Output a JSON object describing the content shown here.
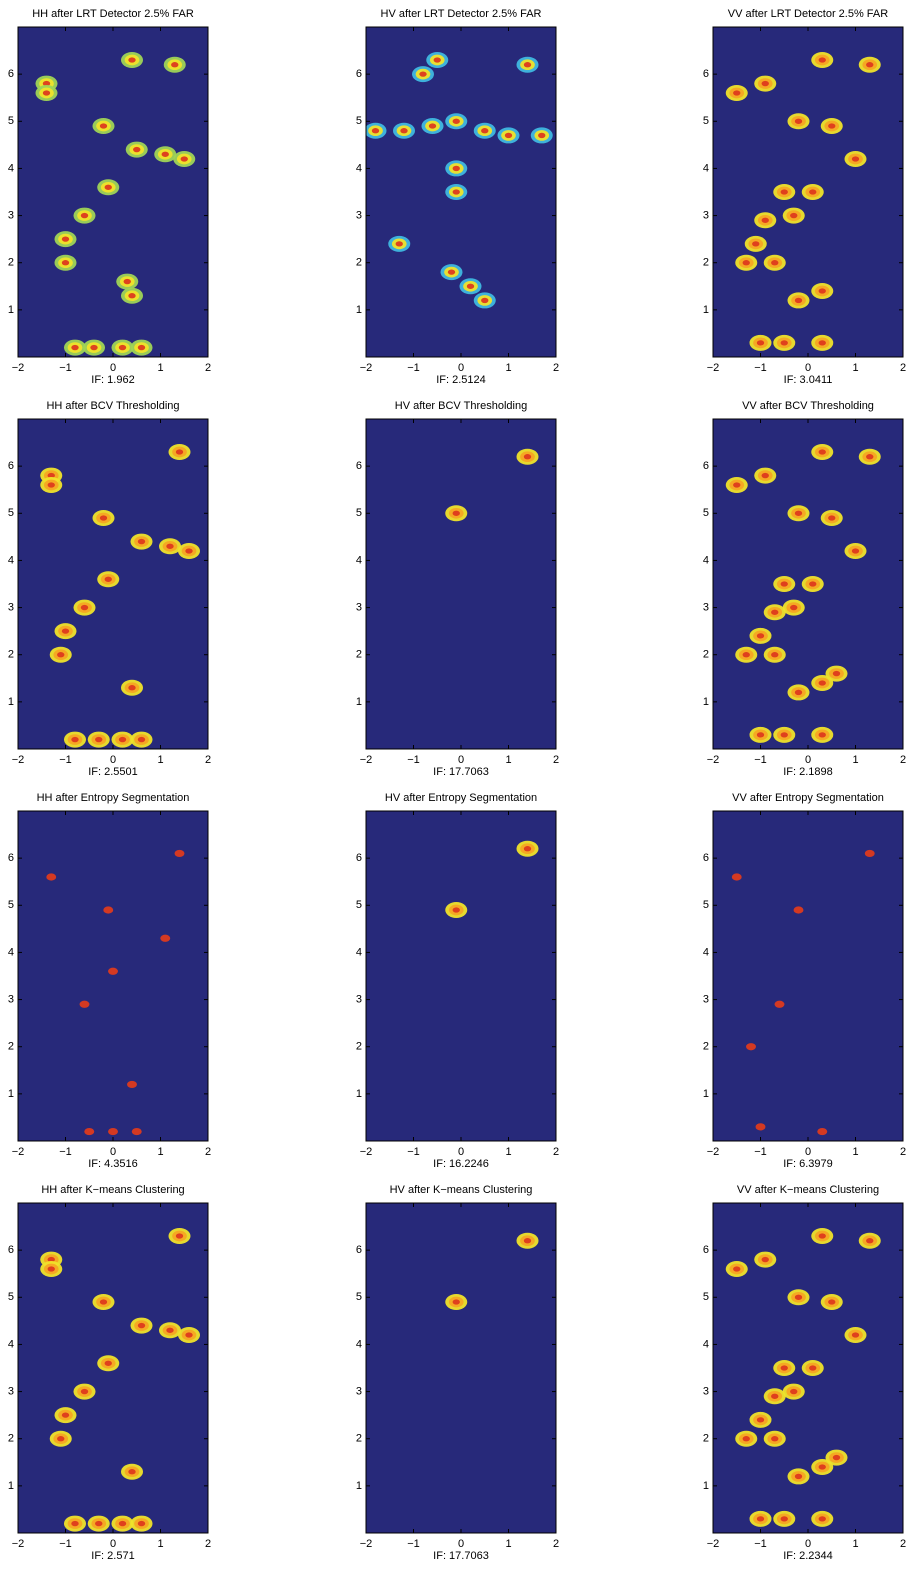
{
  "chart_data": [
    {
      "type": "image",
      "title": "HH after LRT Detector 2.5% FAR",
      "xlabel": "IF: 1.962",
      "xlim": [
        -2,
        2
      ],
      "ylim": [
        0,
        7
      ],
      "xticks": [
        {
          "value": -2,
          "label": "−2"
        },
        {
          "value": -1,
          "label": "−1"
        },
        0,
        1,
        2
      ],
      "yticks": [
        1,
        2,
        3,
        4,
        5,
        6
      ],
      "background": "#27297a",
      "colors": [
        "#9fd456",
        "#f0e32a",
        "#dd3a1e"
      ],
      "x": [
        -1.4,
        -1.4,
        1.3,
        1.1,
        0.5,
        -0.2,
        -0.1,
        -0.6,
        -1.0,
        -1.0,
        0.4,
        0.3,
        -0.8,
        -0.4,
        0.2,
        0.6,
        0.4,
        1.5
      ],
      "y": [
        5.8,
        5.6,
        6.2,
        4.3,
        4.4,
        4.9,
        3.6,
        3.0,
        2.5,
        2.0,
        1.3,
        1.6,
        0.2,
        0.2,
        0.2,
        0.2,
        6.3,
        4.2
      ]
    },
    {
      "type": "image",
      "title": "HV after LRT Detector 2.5% FAR",
      "xlabel": "IF: 2.5124",
      "xlim": [
        -2,
        2
      ],
      "ylim": [
        0,
        7
      ],
      "xticks": [
        {
          "value": -2,
          "label": "−2"
        },
        {
          "value": -1,
          "label": "−1"
        },
        0,
        1,
        2
      ],
      "yticks": [
        1,
        2,
        3,
        4,
        5,
        6
      ],
      "background": "#27297a",
      "colors": [
        "#3fb8e0",
        "#f0e32a",
        "#dd3a1e"
      ],
      "x": [
        -0.1,
        1.4,
        -1.8,
        -1.2,
        -0.6,
        0.5,
        1.0,
        1.7,
        -0.1,
        -0.1,
        -0.5,
        -0.8,
        0.2,
        0.5,
        -0.2,
        -1.3
      ],
      "y": [
        5.0,
        6.2,
        4.8,
        4.8,
        4.9,
        4.8,
        4.7,
        4.7,
        4.0,
        3.5,
        6.3,
        6.0,
        1.5,
        1.2,
        1.8,
        2.4
      ]
    },
    {
      "type": "image",
      "title": "VV after LRT Detector 2.5% FAR",
      "xlabel": "IF: 3.0411",
      "xlim": [
        -2,
        2
      ],
      "ylim": [
        0,
        7
      ],
      "xticks": [
        {
          "value": -2,
          "label": "−2"
        },
        {
          "value": -1,
          "label": "−1"
        },
        0,
        1,
        2
      ],
      "yticks": [
        1,
        2,
        3,
        4,
        5,
        6
      ],
      "background": "#27297a",
      "colors": [
        "#f0e32a",
        "#f5a623",
        "#dd3a1e"
      ],
      "x": [
        -1.5,
        -0.9,
        -0.2,
        0.3,
        1.3,
        0.5,
        -0.9,
        -0.3,
        -1.1,
        -1.3,
        -0.7,
        0.3,
        -0.2,
        -1.0,
        -0.5,
        0.3,
        -0.5,
        0.1,
        1.0
      ],
      "y": [
        5.6,
        5.8,
        5.0,
        6.3,
        6.2,
        4.9,
        2.9,
        3.0,
        2.4,
        2.0,
        2.0,
        1.4,
        1.2,
        0.3,
        0.3,
        0.3,
        3.5,
        3.5,
        4.2
      ]
    },
    {
      "type": "image",
      "title": "HH after BCV Thresholding",
      "xlabel": "IF: 2.5501",
      "xlim": [
        -2,
        2
      ],
      "ylim": [
        0,
        7
      ],
      "xticks": [
        {
          "value": -2,
          "label": "−2"
        },
        {
          "value": -1,
          "label": "−1"
        },
        0,
        1,
        2
      ],
      "yticks": [
        1,
        2,
        3,
        4,
        5,
        6
      ],
      "background": "#27297a",
      "colors": [
        "#f0e32a",
        "#f5a623",
        "#dd3a1e"
      ],
      "x": [
        -1.3,
        -1.3,
        1.4,
        1.2,
        0.6,
        -0.2,
        -0.1,
        -0.6,
        -1.0,
        -1.1,
        0.4,
        -0.8,
        -0.3,
        0.2,
        0.6,
        1.6
      ],
      "y": [
        5.8,
        5.6,
        6.3,
        4.3,
        4.4,
        4.9,
        3.6,
        3.0,
        2.5,
        2.0,
        1.3,
        0.2,
        0.2,
        0.2,
        0.2,
        4.2
      ]
    },
    {
      "type": "image",
      "title": "HV after BCV Thresholding",
      "xlabel": "IF: 17.7063",
      "xlim": [
        -2,
        2
      ],
      "ylim": [
        0,
        7
      ],
      "xticks": [
        {
          "value": -2,
          "label": "−2"
        },
        {
          "value": -1,
          "label": "−1"
        },
        0,
        1,
        2
      ],
      "yticks": [
        1,
        2,
        3,
        4,
        5,
        6
      ],
      "background": "#27297a",
      "colors": [
        "#f0e32a",
        "#f5a623",
        "#dd3a1e"
      ],
      "x": [
        -0.1,
        1.4
      ],
      "y": [
        5.0,
        6.2
      ]
    },
    {
      "type": "image",
      "title": "VV after BCV Thresholding",
      "xlabel": "IF: 2.1898",
      "xlim": [
        -2,
        2
      ],
      "ylim": [
        0,
        7
      ],
      "xticks": [
        {
          "value": -2,
          "label": "−2"
        },
        {
          "value": -1,
          "label": "−1"
        },
        0,
        1,
        2
      ],
      "yticks": [
        1,
        2,
        3,
        4,
        5,
        6
      ],
      "background": "#27297a",
      "colors": [
        "#f0e32a",
        "#f5a623",
        "#dd3a1e"
      ],
      "x": [
        -1.5,
        -0.9,
        -0.2,
        0.3,
        1.3,
        0.5,
        -0.7,
        -0.3,
        -1.0,
        -1.3,
        -0.7,
        0.3,
        -0.2,
        0.6,
        -1.0,
        -0.5,
        0.3,
        -0.5,
        0.1,
        1.0
      ],
      "y": [
        5.6,
        5.8,
        5.0,
        6.3,
        6.2,
        4.9,
        2.9,
        3.0,
        2.4,
        2.0,
        2.0,
        1.4,
        1.2,
        1.6,
        0.3,
        0.3,
        0.3,
        3.5,
        3.5,
        4.2
      ]
    },
    {
      "type": "image",
      "title": "HH after Entropy Segmentation",
      "xlabel": "IF: 4.3516",
      "xlim": [
        -2,
        2
      ],
      "ylim": [
        0,
        7
      ],
      "xticks": [
        {
          "value": -2,
          "label": "−2"
        },
        {
          "value": -1,
          "label": "−1"
        },
        0,
        1,
        2
      ],
      "yticks": [
        1,
        2,
        3,
        4,
        5,
        6
      ],
      "background": "#27297a",
      "colors": [
        "#dd3a1e"
      ],
      "x": [
        1.4,
        -1.3,
        1.1,
        -0.1,
        0.0,
        -0.6,
        0.4,
        -0.5,
        0.0,
        0.5
      ],
      "y": [
        6.1,
        5.6,
        4.3,
        4.9,
        3.6,
        2.9,
        1.2,
        0.2,
        0.2,
        0.2
      ]
    },
    {
      "type": "image",
      "title": "HV after Entropy Segmentation",
      "xlabel": "IF: 16.2246",
      "xlim": [
        -2,
        2
      ],
      "ylim": [
        0,
        7
      ],
      "xticks": [
        {
          "value": -2,
          "label": "−2"
        },
        {
          "value": -1,
          "label": "−1"
        },
        0,
        1,
        2
      ],
      "yticks": [
        1,
        2,
        3,
        4,
        5,
        6
      ],
      "background": "#27297a",
      "colors": [
        "#f0e32a",
        "#f5a623",
        "#dd3a1e"
      ],
      "x": [
        -0.1,
        1.4
      ],
      "y": [
        4.9,
        6.2
      ]
    },
    {
      "type": "image",
      "title": "VV after Entropy Segmentation",
      "xlabel": "IF: 6.3979",
      "xlim": [
        -2,
        2
      ],
      "ylim": [
        0,
        7
      ],
      "xticks": [
        {
          "value": -2,
          "label": "−2"
        },
        {
          "value": -1,
          "label": "−1"
        },
        0,
        1,
        2
      ],
      "yticks": [
        1,
        2,
        3,
        4,
        5,
        6
      ],
      "background": "#27297a",
      "colors": [
        "#dd3a1e"
      ],
      "x": [
        1.3,
        -1.5,
        -0.2,
        -0.6,
        -1.2,
        -1.0,
        0.3
      ],
      "y": [
        6.1,
        5.6,
        4.9,
        2.9,
        2.0,
        0.3,
        0.2
      ]
    },
    {
      "type": "image",
      "title": "HH after K−means Clustering",
      "xlabel": "IF: 2.571",
      "xlim": [
        -2,
        2
      ],
      "ylim": [
        0,
        7
      ],
      "xticks": [
        {
          "value": -2,
          "label": "−2"
        },
        {
          "value": -1,
          "label": "−1"
        },
        0,
        1,
        2
      ],
      "yticks": [
        1,
        2,
        3,
        4,
        5,
        6
      ],
      "background": "#27297a",
      "colors": [
        "#f0e32a",
        "#f5a623",
        "#dd3a1e"
      ],
      "x": [
        -1.3,
        -1.3,
        1.4,
        1.2,
        0.6,
        -0.2,
        -0.1,
        -0.6,
        -1.0,
        -1.1,
        0.4,
        -0.8,
        -0.3,
        0.2,
        0.6,
        1.6
      ],
      "y": [
        5.8,
        5.6,
        6.3,
        4.3,
        4.4,
        4.9,
        3.6,
        3.0,
        2.5,
        2.0,
        1.3,
        0.2,
        0.2,
        0.2,
        0.2,
        4.2
      ]
    },
    {
      "type": "image",
      "title": "HV after K−means Clustering",
      "xlabel": "IF: 17.7063",
      "xlim": [
        -2,
        2
      ],
      "ylim": [
        0,
        7
      ],
      "xticks": [
        {
          "value": -2,
          "label": "−2"
        },
        {
          "value": -1,
          "label": "−1"
        },
        0,
        1,
        2
      ],
      "yticks": [
        1,
        2,
        3,
        4,
        5,
        6
      ],
      "background": "#27297a",
      "colors": [
        "#f0e32a",
        "#f5a623",
        "#dd3a1e"
      ],
      "x": [
        -0.1,
        1.4
      ],
      "y": [
        4.9,
        6.2
      ]
    },
    {
      "type": "image",
      "title": "VV after K−means Clustering",
      "xlabel": "IF: 2.2344",
      "xlim": [
        -2,
        2
      ],
      "ylim": [
        0,
        7
      ],
      "xticks": [
        {
          "value": -2,
          "label": "−2"
        },
        {
          "value": -1,
          "label": "−1"
        },
        0,
        1,
        2
      ],
      "yticks": [
        1,
        2,
        3,
        4,
        5,
        6
      ],
      "background": "#27297a",
      "colors": [
        "#f0e32a",
        "#f5a623",
        "#dd3a1e"
      ],
      "x": [
        -1.5,
        -0.9,
        -0.2,
        0.3,
        1.3,
        0.5,
        -0.7,
        -0.3,
        -1.0,
        -1.3,
        -0.7,
        0.3,
        -0.2,
        0.6,
        -1.0,
        -0.5,
        0.3,
        -0.5,
        0.1,
        1.0
      ],
      "y": [
        5.6,
        5.8,
        5.0,
        6.3,
        6.2,
        4.9,
        2.9,
        3.0,
        2.4,
        2.0,
        2.0,
        1.4,
        1.2,
        1.6,
        0.3,
        0.3,
        0.3,
        3.5,
        3.5,
        4.2
      ]
    }
  ]
}
